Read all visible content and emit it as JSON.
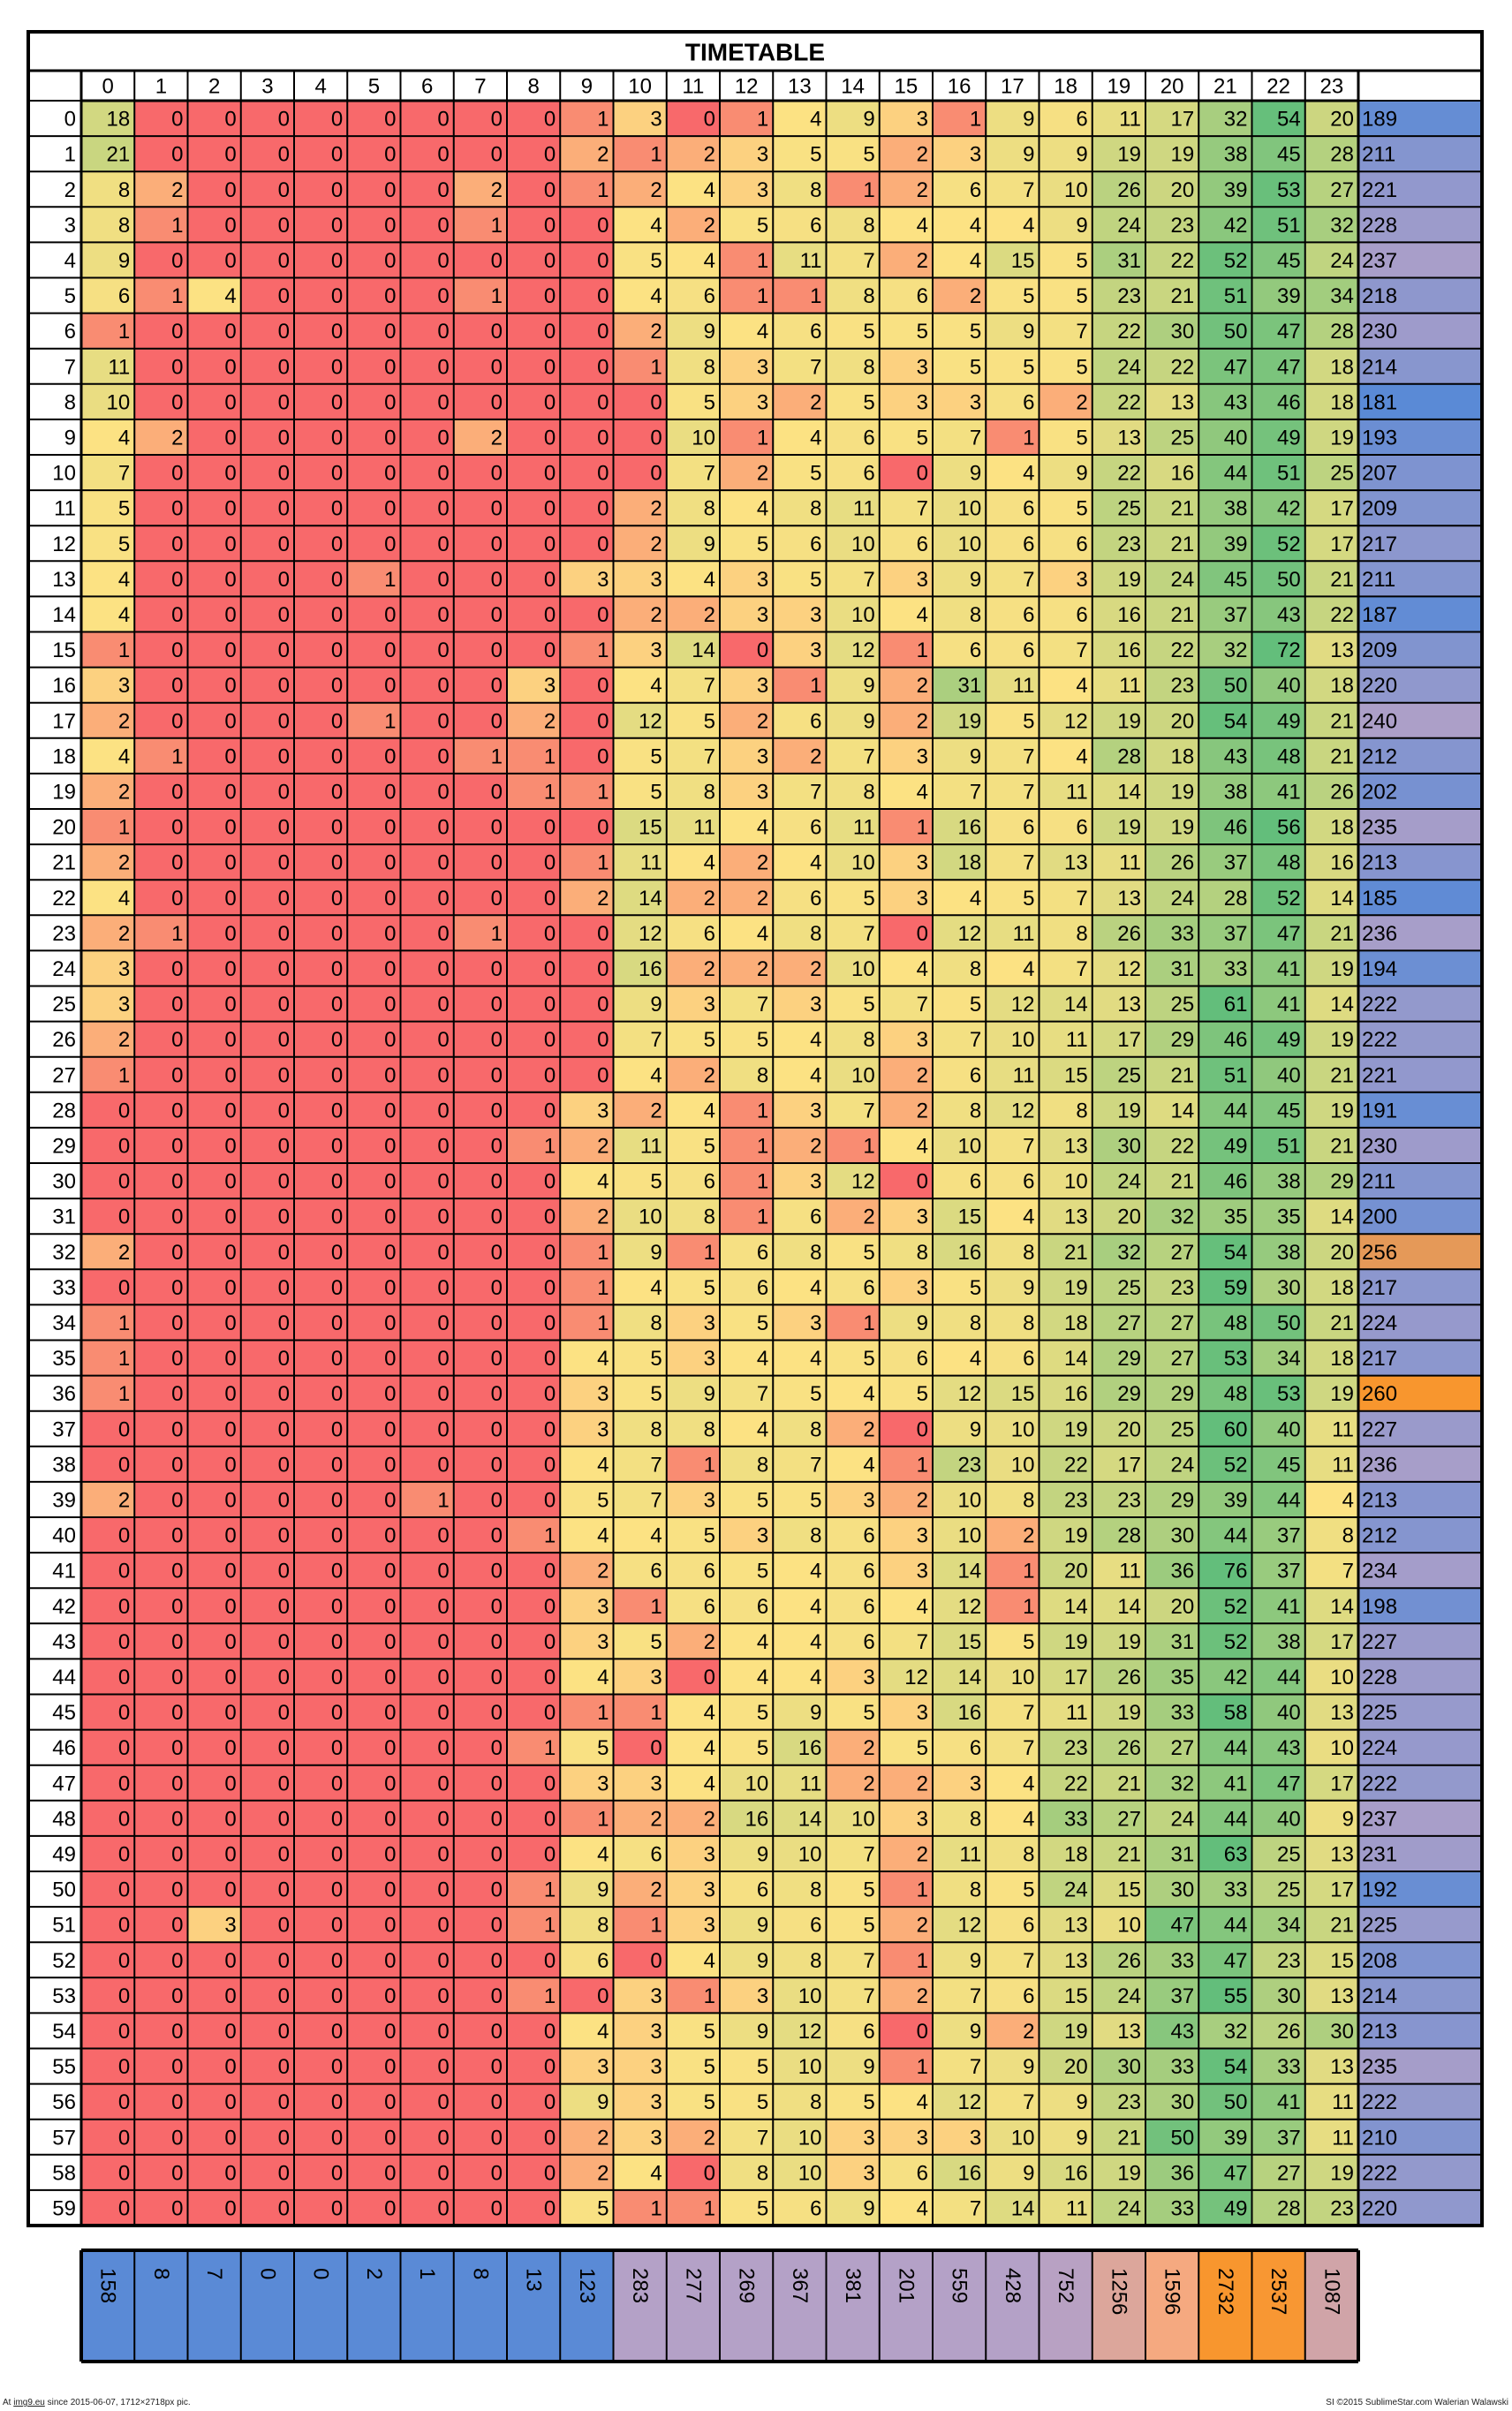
{
  "chart_data": {
    "type": "heatmap",
    "title": "TIMETABLE",
    "columns": [
      "0",
      "1",
      "2",
      "3",
      "4",
      "5",
      "6",
      "7",
      "8",
      "9",
      "10",
      "11",
      "12",
      "13",
      "14",
      "15",
      "16",
      "17",
      "18",
      "19",
      "20",
      "21",
      "22",
      "23"
    ],
    "rows": [
      "0",
      "1",
      "2",
      "3",
      "4",
      "5",
      "6",
      "7",
      "8",
      "9",
      "10",
      "11",
      "12",
      "13",
      "14",
      "15",
      "16",
      "17",
      "18",
      "19",
      "20",
      "21",
      "22",
      "23",
      "24",
      "25",
      "26",
      "27",
      "28",
      "29",
      "30",
      "31",
      "32",
      "33",
      "34",
      "35",
      "36",
      "37",
      "38",
      "39",
      "40",
      "41",
      "42",
      "43",
      "44",
      "45",
      "46",
      "47",
      "48",
      "49",
      "50",
      "51",
      "52",
      "53",
      "54",
      "55",
      "56",
      "57",
      "58",
      "59"
    ],
    "values": [
      [
        18,
        0,
        0,
        0,
        0,
        0,
        0,
        0,
        0,
        1,
        3,
        0,
        1,
        4,
        9,
        3,
        1,
        9,
        6,
        11,
        17,
        32,
        54,
        20
      ],
      [
        21,
        0,
        0,
        0,
        0,
        0,
        0,
        0,
        0,
        2,
        1,
        2,
        3,
        5,
        5,
        2,
        3,
        9,
        9,
        19,
        19,
        38,
        45,
        28
      ],
      [
        8,
        2,
        0,
        0,
        0,
        0,
        0,
        2,
        0,
        1,
        2,
        4,
        3,
        8,
        1,
        2,
        6,
        7,
        10,
        26,
        20,
        39,
        53,
        27
      ],
      [
        8,
        1,
        0,
        0,
        0,
        0,
        0,
        1,
        0,
        0,
        4,
        2,
        5,
        6,
        8,
        4,
        4,
        4,
        9,
        24,
        23,
        42,
        51,
        32
      ],
      [
        9,
        0,
        0,
        0,
        0,
        0,
        0,
        0,
        0,
        0,
        5,
        4,
        1,
        11,
        7,
        2,
        4,
        15,
        5,
        31,
        22,
        52,
        45,
        24
      ],
      [
        6,
        1,
        4,
        0,
        0,
        0,
        0,
        1,
        0,
        0,
        4,
        6,
        1,
        1,
        8,
        6,
        2,
        5,
        5,
        23,
        21,
        51,
        39,
        34
      ],
      [
        1,
        0,
        0,
        0,
        0,
        0,
        0,
        0,
        0,
        0,
        2,
        9,
        4,
        6,
        5,
        5,
        5,
        9,
        7,
        22,
        30,
        50,
        47,
        28
      ],
      [
        11,
        0,
        0,
        0,
        0,
        0,
        0,
        0,
        0,
        0,
        1,
        8,
        3,
        7,
        8,
        3,
        5,
        5,
        5,
        24,
        22,
        47,
        47,
        18
      ],
      [
        10,
        0,
        0,
        0,
        0,
        0,
        0,
        0,
        0,
        0,
        0,
        5,
        3,
        2,
        5,
        3,
        3,
        6,
        2,
        22,
        13,
        43,
        46,
        18
      ],
      [
        4,
        2,
        0,
        0,
        0,
        0,
        0,
        2,
        0,
        0,
        0,
        10,
        1,
        4,
        6,
        5,
        7,
        1,
        5,
        13,
        25,
        40,
        49,
        19
      ],
      [
        7,
        0,
        0,
        0,
        0,
        0,
        0,
        0,
        0,
        0,
        0,
        7,
        2,
        5,
        6,
        0,
        9,
        4,
        9,
        22,
        16,
        44,
        51,
        25
      ],
      [
        5,
        0,
        0,
        0,
        0,
        0,
        0,
        0,
        0,
        0,
        2,
        8,
        4,
        8,
        11,
        7,
        10,
        6,
        5,
        25,
        21,
        38,
        42,
        17
      ],
      [
        5,
        0,
        0,
        0,
        0,
        0,
        0,
        0,
        0,
        0,
        2,
        9,
        5,
        6,
        10,
        6,
        10,
        6,
        6,
        23,
        21,
        39,
        52,
        17
      ],
      [
        4,
        0,
        0,
        0,
        0,
        1,
        0,
        0,
        0,
        3,
        3,
        4,
        3,
        5,
        7,
        3,
        9,
        7,
        3,
        19,
        24,
        45,
        50,
        21
      ],
      [
        4,
        0,
        0,
        0,
        0,
        0,
        0,
        0,
        0,
        0,
        2,
        2,
        3,
        3,
        10,
        4,
        8,
        6,
        6,
        16,
        21,
        37,
        43,
        22
      ],
      [
        1,
        0,
        0,
        0,
        0,
        0,
        0,
        0,
        0,
        1,
        3,
        14,
        0,
        3,
        12,
        1,
        6,
        6,
        7,
        16,
        22,
        32,
        72,
        13
      ],
      [
        3,
        0,
        0,
        0,
        0,
        0,
        0,
        0,
        3,
        0,
        4,
        7,
        3,
        1,
        9,
        2,
        31,
        11,
        4,
        11,
        23,
        50,
        40,
        18
      ],
      [
        2,
        0,
        0,
        0,
        0,
        1,
        0,
        0,
        2,
        0,
        12,
        5,
        2,
        6,
        9,
        2,
        19,
        5,
        12,
        19,
        20,
        54,
        49,
        21
      ],
      [
        4,
        1,
        0,
        0,
        0,
        0,
        0,
        1,
        1,
        0,
        5,
        7,
        3,
        2,
        7,
        3,
        9,
        7,
        4,
        28,
        18,
        43,
        48,
        21
      ],
      [
        2,
        0,
        0,
        0,
        0,
        0,
        0,
        0,
        1,
        1,
        5,
        8,
        3,
        7,
        8,
        4,
        7,
        7,
        11,
        14,
        19,
        38,
        41,
        26
      ],
      [
        1,
        0,
        0,
        0,
        0,
        0,
        0,
        0,
        0,
        0,
        15,
        11,
        4,
        6,
        11,
        1,
        16,
        6,
        6,
        19,
        19,
        46,
        56,
        18
      ],
      [
        2,
        0,
        0,
        0,
        0,
        0,
        0,
        0,
        0,
        1,
        11,
        4,
        2,
        4,
        10,
        3,
        18,
        7,
        13,
        11,
        26,
        37,
        48,
        16
      ],
      [
        4,
        0,
        0,
        0,
        0,
        0,
        0,
        0,
        0,
        2,
        14,
        2,
        2,
        6,
        5,
        3,
        4,
        5,
        7,
        13,
        24,
        28,
        52,
        14
      ],
      [
        2,
        1,
        0,
        0,
        0,
        0,
        0,
        1,
        0,
        0,
        12,
        6,
        4,
        8,
        7,
        0,
        12,
        11,
        8,
        26,
        33,
        37,
        47,
        21
      ],
      [
        3,
        0,
        0,
        0,
        0,
        0,
        0,
        0,
        0,
        0,
        16,
        2,
        2,
        2,
        10,
        4,
        8,
        4,
        7,
        12,
        31,
        33,
        41,
        19
      ],
      [
        3,
        0,
        0,
        0,
        0,
        0,
        0,
        0,
        0,
        0,
        9,
        3,
        7,
        3,
        5,
        7,
        5,
        12,
        14,
        13,
        25,
        61,
        41,
        14
      ],
      [
        2,
        0,
        0,
        0,
        0,
        0,
        0,
        0,
        0,
        0,
        7,
        5,
        5,
        4,
        8,
        3,
        7,
        10,
        11,
        17,
        29,
        46,
        49,
        19
      ],
      [
        1,
        0,
        0,
        0,
        0,
        0,
        0,
        0,
        0,
        0,
        4,
        2,
        8,
        4,
        10,
        2,
        6,
        11,
        15,
        25,
        21,
        51,
        40,
        21
      ],
      [
        0,
        0,
        0,
        0,
        0,
        0,
        0,
        0,
        0,
        3,
        2,
        4,
        1,
        3,
        7,
        2,
        8,
        12,
        8,
        19,
        14,
        44,
        45,
        19
      ],
      [
        0,
        0,
        0,
        0,
        0,
        0,
        0,
        0,
        1,
        2,
        11,
        5,
        1,
        2,
        1,
        4,
        10,
        7,
        13,
        30,
        22,
        49,
        51,
        21
      ],
      [
        0,
        0,
        0,
        0,
        0,
        0,
        0,
        0,
        0,
        4,
        5,
        6,
        1,
        3,
        12,
        0,
        6,
        6,
        10,
        24,
        21,
        46,
        38,
        29
      ],
      [
        0,
        0,
        0,
        0,
        0,
        0,
        0,
        0,
        0,
        2,
        10,
        8,
        1,
        6,
        2,
        3,
        15,
        4,
        13,
        20,
        32,
        35,
        35,
        14
      ],
      [
        2,
        0,
        0,
        0,
        0,
        0,
        0,
        0,
        0,
        1,
        9,
        1,
        6,
        8,
        5,
        8,
        16,
        8,
        21,
        32,
        27,
        54,
        38,
        20
      ],
      [
        0,
        0,
        0,
        0,
        0,
        0,
        0,
        0,
        0,
        1,
        4,
        5,
        6,
        4,
        6,
        3,
        5,
        9,
        19,
        25,
        23,
        59,
        30,
        18
      ],
      [
        1,
        0,
        0,
        0,
        0,
        0,
        0,
        0,
        0,
        1,
        8,
        3,
        5,
        3,
        1,
        9,
        8,
        8,
        18,
        27,
        27,
        48,
        50,
        21
      ],
      [
        1,
        0,
        0,
        0,
        0,
        0,
        0,
        0,
        0,
        4,
        5,
        3,
        4,
        4,
        5,
        6,
        4,
        6,
        14,
        29,
        27,
        53,
        34,
        18
      ],
      [
        1,
        0,
        0,
        0,
        0,
        0,
        0,
        0,
        0,
        3,
        5,
        9,
        7,
        5,
        4,
        5,
        12,
        15,
        16,
        29,
        29,
        48,
        53,
        19
      ],
      [
        0,
        0,
        0,
        0,
        0,
        0,
        0,
        0,
        0,
        3,
        8,
        8,
        4,
        8,
        2,
        0,
        9,
        10,
        19,
        20,
        25,
        60,
        40,
        11
      ],
      [
        0,
        0,
        0,
        0,
        0,
        0,
        0,
        0,
        0,
        4,
        7,
        1,
        8,
        7,
        4,
        1,
        23,
        10,
        22,
        17,
        24,
        52,
        45,
        11
      ],
      [
        2,
        0,
        0,
        0,
        0,
        0,
        1,
        0,
        0,
        5,
        7,
        3,
        5,
        5,
        3,
        2,
        10,
        8,
        23,
        23,
        29,
        39,
        44,
        4
      ],
      [
        0,
        0,
        0,
        0,
        0,
        0,
        0,
        0,
        1,
        4,
        4,
        5,
        3,
        8,
        6,
        3,
        10,
        2,
        19,
        28,
        30,
        44,
        37,
        8
      ],
      [
        0,
        0,
        0,
        0,
        0,
        0,
        0,
        0,
        0,
        2,
        6,
        6,
        5,
        4,
        6,
        3,
        14,
        1,
        20,
        11,
        36,
        76,
        37,
        7
      ],
      [
        0,
        0,
        0,
        0,
        0,
        0,
        0,
        0,
        0,
        3,
        1,
        6,
        6,
        4,
        6,
        4,
        12,
        1,
        14,
        14,
        20,
        52,
        41,
        14
      ],
      [
        0,
        0,
        0,
        0,
        0,
        0,
        0,
        0,
        0,
        3,
        5,
        2,
        4,
        4,
        6,
        7,
        15,
        5,
        19,
        19,
        31,
        52,
        38,
        17
      ],
      [
        0,
        0,
        0,
        0,
        0,
        0,
        0,
        0,
        0,
        4,
        3,
        0,
        4,
        4,
        3,
        12,
        14,
        10,
        17,
        26,
        35,
        42,
        44,
        10
      ],
      [
        0,
        0,
        0,
        0,
        0,
        0,
        0,
        0,
        0,
        1,
        1,
        4,
        5,
        9,
        5,
        3,
        16,
        7,
        11,
        19,
        33,
        58,
        40,
        13
      ],
      [
        0,
        0,
        0,
        0,
        0,
        0,
        0,
        0,
        1,
        5,
        0,
        4,
        5,
        16,
        2,
        5,
        6,
        7,
        23,
        26,
        27,
        44,
        43,
        10
      ],
      [
        0,
        0,
        0,
        0,
        0,
        0,
        0,
        0,
        0,
        3,
        3,
        4,
        10,
        11,
        2,
        2,
        3,
        4,
        22,
        21,
        32,
        41,
        47,
        17
      ],
      [
        0,
        0,
        0,
        0,
        0,
        0,
        0,
        0,
        0,
        1,
        2,
        2,
        16,
        14,
        10,
        3,
        8,
        4,
        33,
        27,
        24,
        44,
        40,
        9
      ],
      [
        0,
        0,
        0,
        0,
        0,
        0,
        0,
        0,
        0,
        4,
        6,
        3,
        9,
        10,
        7,
        2,
        11,
        8,
        18,
        21,
        31,
        63,
        25,
        13
      ],
      [
        0,
        0,
        0,
        0,
        0,
        0,
        0,
        0,
        1,
        9,
        2,
        3,
        6,
        8,
        5,
        1,
        8,
        5,
        24,
        15,
        30,
        33,
        25,
        17
      ],
      [
        0,
        0,
        3,
        0,
        0,
        0,
        0,
        0,
        1,
        8,
        1,
        3,
        9,
        6,
        5,
        2,
        12,
        6,
        13,
        10,
        47,
        44,
        34,
        21
      ],
      [
        0,
        0,
        0,
        0,
        0,
        0,
        0,
        0,
        0,
        6,
        0,
        4,
        9,
        8,
        7,
        1,
        9,
        7,
        13,
        26,
        33,
        47,
        23,
        15
      ],
      [
        0,
        0,
        0,
        0,
        0,
        0,
        0,
        0,
        1,
        0,
        3,
        1,
        3,
        10,
        7,
        2,
        7,
        6,
        15,
        24,
        37,
        55,
        30,
        13
      ],
      [
        0,
        0,
        0,
        0,
        0,
        0,
        0,
        0,
        0,
        4,
        3,
        5,
        9,
        12,
        6,
        0,
        9,
        2,
        19,
        13,
        43,
        32,
        26,
        30
      ],
      [
        0,
        0,
        0,
        0,
        0,
        0,
        0,
        0,
        0,
        3,
        3,
        5,
        5,
        10,
        9,
        1,
        7,
        9,
        20,
        30,
        33,
        54,
        33,
        13
      ],
      [
        0,
        0,
        0,
        0,
        0,
        0,
        0,
        0,
        0,
        9,
        3,
        5,
        5,
        8,
        5,
        4,
        12,
        7,
        9,
        23,
        30,
        50,
        41,
        11
      ],
      [
        0,
        0,
        0,
        0,
        0,
        0,
        0,
        0,
        0,
        2,
        3,
        2,
        7,
        10,
        3,
        3,
        3,
        10,
        9,
        21,
        50,
        39,
        37,
        11
      ],
      [
        0,
        0,
        0,
        0,
        0,
        0,
        0,
        0,
        0,
        2,
        4,
        0,
        8,
        10,
        3,
        6,
        16,
        9,
        16,
        19,
        36,
        47,
        27,
        19
      ],
      [
        0,
        0,
        0,
        0,
        0,
        0,
        0,
        0,
        0,
        5,
        1,
        1,
        5,
        6,
        9,
        4,
        7,
        14,
        11,
        24,
        33,
        49,
        28,
        23
      ]
    ],
    "row_totals": [
      189,
      211,
      221,
      228,
      237,
      218,
      230,
      214,
      181,
      193,
      207,
      209,
      217,
      211,
      187,
      209,
      220,
      240,
      212,
      202,
      235,
      213,
      185,
      236,
      194,
      222,
      222,
      221,
      191,
      230,
      211,
      200,
      256,
      217,
      224,
      217,
      260,
      227,
      236,
      213,
      212,
      234,
      198,
      227,
      228,
      225,
      224,
      222,
      237,
      231,
      192,
      225,
      208,
      214,
      213,
      235,
      222,
      210,
      222,
      220
    ],
    "column_totals": [
      158,
      8,
      7,
      0,
      0,
      2,
      1,
      8,
      13,
      123,
      283,
      277,
      269,
      367,
      381,
      201,
      559,
      428,
      752,
      1256,
      1596,
      2732,
      2537,
      1087
    ],
    "color_scale": {
      "cells": [
        "#f8696b",
        "#fde283",
        "#63be7b"
      ],
      "totals": [
        "#5a8ad6",
        "#fcaa78",
        "#f8962e"
      ]
    }
  },
  "footer": {
    "left_prefix": "At ",
    "left_link": "img9.eu",
    "left_suffix": " since 2015-06-07, 1712×2718px pic.",
    "right": "SI ©2015 SublimeStar.com Walerian Walawski"
  }
}
